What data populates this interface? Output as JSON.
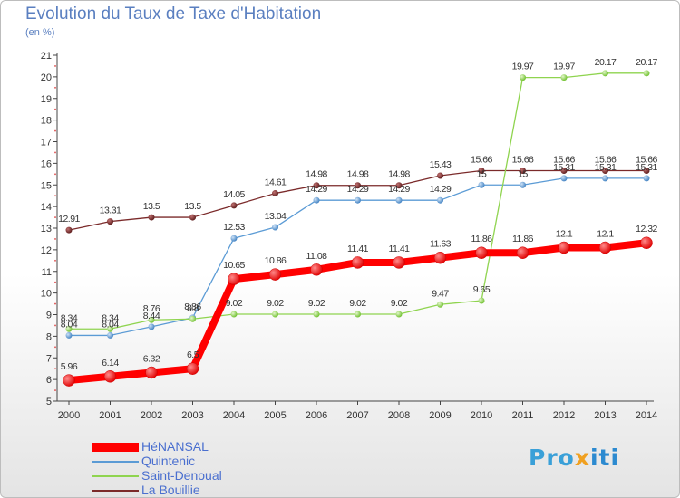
{
  "title": "Evolution du Taux de Taxe d'Habitation",
  "subtitle": "(en %)",
  "logo": {
    "p": "Pro",
    "x": "x",
    "iti": "iti"
  },
  "chart_data": {
    "type": "line",
    "title": "Evolution du Taux de Taxe d'Habitation",
    "ylabel": "(en %)",
    "xlabel": "",
    "ylim": [
      5,
      21
    ],
    "yticks": [
      5,
      6,
      7,
      8,
      9,
      10,
      11,
      12,
      13,
      14,
      15,
      16,
      17,
      18,
      19,
      20,
      21
    ],
    "grid": false,
    "legend": "bottom-left",
    "x": [
      "2000",
      "2001",
      "2002",
      "2003",
      "2004",
      "2005",
      "2006",
      "2007",
      "2008",
      "2009",
      "2010",
      "2011",
      "2012",
      "2013",
      "2014"
    ],
    "series": [
      {
        "name": "HéNANSAL",
        "color": "#ff0000",
        "values": [
          5.96,
          6.14,
          6.32,
          6.5,
          10.65,
          10.86,
          11.08,
          11.41,
          11.41,
          11.63,
          11.86,
          11.86,
          12.1,
          12.1,
          12.32
        ],
        "labels": [
          "5.96",
          "6.14",
          "6.32",
          "6.5",
          "10.65",
          "10.86",
          "11.08",
          "11.41",
          "11.41",
          "11.63",
          "11.86",
          "11.86",
          "12.1",
          "12.1",
          "12.32"
        ]
      },
      {
        "name": "Quintenic",
        "color": "#5b9bd5",
        "values": [
          8.04,
          8.04,
          8.44,
          8.86,
          12.53,
          13.04,
          14.29,
          14.29,
          14.29,
          14.29,
          15,
          15,
          15.31,
          15.31,
          15.31
        ],
        "labels": [
          "8.04",
          "8.04",
          "8.44",
          "8.86",
          "12.53",
          "13.04",
          "14.29",
          "14.29",
          "14.29",
          "14.29",
          "15",
          "15",
          "15.31",
          "15.31",
          "15.31"
        ]
      },
      {
        "name": "Saint-Denoual",
        "color": "#8fd44f",
        "values": [
          8.34,
          8.34,
          8.76,
          8.8,
          9.02,
          9.02,
          9.02,
          9.02,
          9.02,
          9.47,
          9.65,
          19.97,
          19.97,
          20.17,
          20.17
        ],
        "labels": [
          "8.34",
          "8.34",
          "8.76",
          "8.8",
          "9.02",
          "9.02",
          "9.02",
          "9.02",
          "9.02",
          "9.47",
          "9.65",
          "19.97",
          "19.97",
          "20.17",
          "20.17"
        ]
      },
      {
        "name": "La Bouillie",
        "color": "#7b2a2a",
        "values": [
          12.91,
          13.31,
          13.5,
          13.5,
          14.05,
          14.61,
          14.98,
          14.98,
          14.98,
          15.43,
          15.66,
          15.66,
          15.66,
          15.66,
          15.66
        ],
        "labels": [
          "12.91",
          "13.31",
          "13.5",
          "13.5",
          "14.05",
          "14.61",
          "14.98",
          "14.98",
          "14.98",
          "15.43",
          "15.66",
          "15.66",
          "15.66",
          "15.66",
          "15.66"
        ]
      }
    ]
  }
}
